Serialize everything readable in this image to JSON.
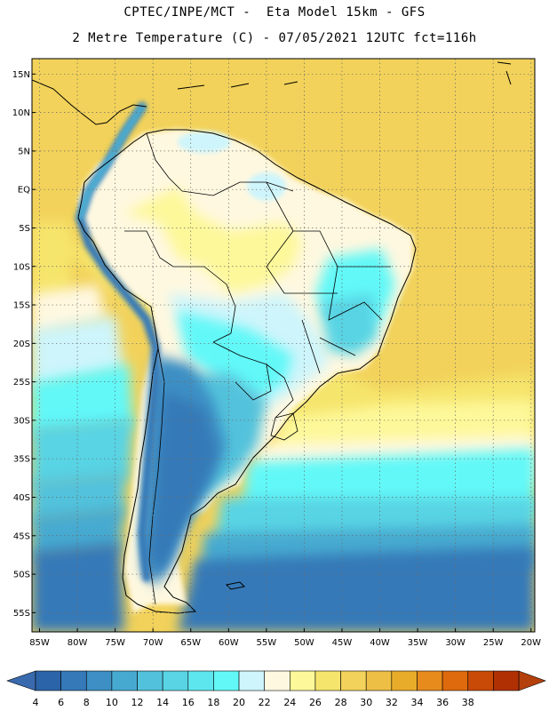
{
  "header": {
    "line1": "CPTEC/INPE/MCT -  Eta Model 15km - GFS",
    "line2": "2 Metre Temperature (C) - 07/05/2021 12UTC fct=116h"
  },
  "map": {
    "lon_range": [
      -86,
      -19.5
    ],
    "lat_range": [
      -57.5,
      17
    ],
    "lat_ticks": [
      {
        "value": 15,
        "label": "15N"
      },
      {
        "value": 10,
        "label": "10N"
      },
      {
        "value": 5,
        "label": "5N"
      },
      {
        "value": 0,
        "label": "EQ"
      },
      {
        "value": -5,
        "label": "5S"
      },
      {
        "value": -10,
        "label": "10S"
      },
      {
        "value": -15,
        "label": "15S"
      },
      {
        "value": -20,
        "label": "20S"
      },
      {
        "value": -25,
        "label": "25S"
      },
      {
        "value": -30,
        "label": "30S"
      },
      {
        "value": -35,
        "label": "35S"
      },
      {
        "value": -40,
        "label": "40S"
      },
      {
        "value": -45,
        "label": "45S"
      },
      {
        "value": -50,
        "label": "50S"
      },
      {
        "value": -55,
        "label": "55S"
      }
    ],
    "lon_ticks": [
      {
        "value": -85,
        "label": "85W"
      },
      {
        "value": -80,
        "label": "80W"
      },
      {
        "value": -75,
        "label": "75W"
      },
      {
        "value": -70,
        "label": "70W"
      },
      {
        "value": -65,
        "label": "65W"
      },
      {
        "value": -60,
        "label": "60W"
      },
      {
        "value": -55,
        "label": "55W"
      },
      {
        "value": -50,
        "label": "50W"
      },
      {
        "value": -45,
        "label": "45W"
      },
      {
        "value": -40,
        "label": "40W"
      },
      {
        "value": -35,
        "label": "35W"
      },
      {
        "value": -30,
        "label": "30W"
      },
      {
        "value": -25,
        "label": "25W"
      },
      {
        "value": -20,
        "label": "20W"
      }
    ]
  },
  "colorbar": {
    "labels": [
      "4",
      "6",
      "8",
      "10",
      "12",
      "14",
      "16",
      "18",
      "20",
      "22",
      "24",
      "26",
      "28",
      "30",
      "32",
      "34",
      "36",
      "38"
    ],
    "colors": [
      "#2b64a8",
      "#3579b8",
      "#3d8fc4",
      "#46aad0",
      "#52c2dc",
      "#59d4e4",
      "#5ee6ee",
      "#62f8f8",
      "#cef5fb",
      "#fff8e0",
      "#fdf89a",
      "#f6e56c",
      "#f2d25a",
      "#edbf45",
      "#e9ac2a",
      "#e78b1c",
      "#df6a0d",
      "#c94a06",
      "#b03004"
    ],
    "low_color": "#3a6aae",
    "high_color": "#b4400c"
  }
}
